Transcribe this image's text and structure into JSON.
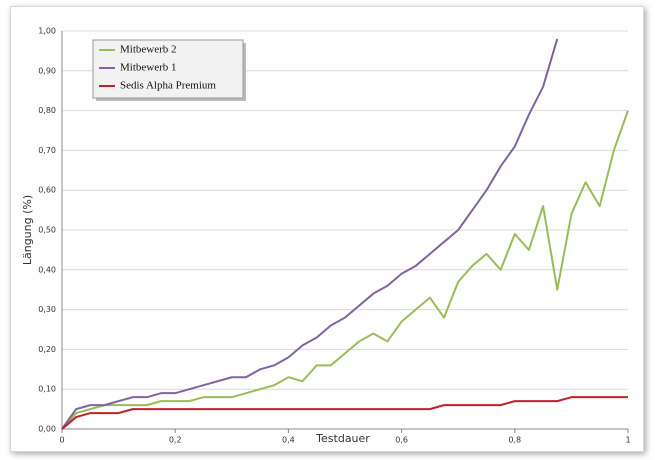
{
  "chart_data": {
    "type": "line",
    "xlabel": "Testdauer",
    "ylabel": "Längung (%)",
    "x": [
      0,
      0.025,
      0.05,
      0.075,
      0.1,
      0.125,
      0.15,
      0.175,
      0.2,
      0.225,
      0.25,
      0.275,
      0.3,
      0.325,
      0.35,
      0.375,
      0.4,
      0.425,
      0.45,
      0.475,
      0.5,
      0.525,
      0.55,
      0.575,
      0.6,
      0.625,
      0.65,
      0.675,
      0.7,
      0.725,
      0.75,
      0.775,
      0.8,
      0.825,
      0.85,
      0.875,
      0.9,
      0.925,
      0.95,
      0.975,
      1
    ],
    "series": [
      {
        "name": "Mitbewerb 2",
        "color": "#9bbb59",
        "values": [
          0,
          0.04,
          0.05,
          0.06,
          0.06,
          0.06,
          0.06,
          0.07,
          0.07,
          0.07,
          0.08,
          0.08,
          0.08,
          0.09,
          0.1,
          0.11,
          0.13,
          0.12,
          0.16,
          0.16,
          0.19,
          0.22,
          0.24,
          0.22,
          0.27,
          0.3,
          0.33,
          0.28,
          0.37,
          0.41,
          0.44,
          0.4,
          0.49,
          0.45,
          0.56,
          0.35,
          0.54,
          0.62,
          0.56,
          0.7,
          0.8
        ]
      },
      {
        "name": "Mitbewerb 1",
        "color": "#8064a2",
        "values": [
          0,
          0.05,
          0.06,
          0.06,
          0.07,
          0.08,
          0.08,
          0.09,
          0.09,
          0.1,
          0.11,
          0.12,
          0.13,
          0.13,
          0.15,
          0.16,
          0.18,
          0.21,
          0.23,
          0.26,
          0.28,
          0.31,
          0.34,
          0.36,
          0.39,
          0.41,
          0.44,
          0.47,
          0.5,
          0.55,
          0.6,
          0.66,
          0.71,
          0.79,
          0.86,
          0.98,
          null,
          null,
          null,
          null,
          null
        ]
      },
      {
        "name": "Sedis Alpha Premium",
        "color": "#c0202a",
        "values": [
          0,
          0.03,
          0.04,
          0.04,
          0.04,
          0.05,
          0.05,
          0.05,
          0.05,
          0.05,
          0.05,
          0.05,
          0.05,
          0.05,
          0.05,
          0.05,
          0.05,
          0.05,
          0.05,
          0.05,
          0.05,
          0.05,
          0.05,
          0.05,
          0.05,
          0.05,
          0.05,
          0.06,
          0.06,
          0.06,
          0.06,
          0.06,
          0.07,
          0.07,
          0.07,
          0.07,
          0.08,
          0.08,
          0.08,
          0.08,
          0.08
        ]
      }
    ],
    "xlim": [
      0,
      1
    ],
    "ylim": [
      0,
      1
    ],
    "xticks": [
      0,
      {
        "value": 0.2,
        "label": "0,2"
      },
      {
        "value": 0.4,
        "label": "0,4"
      },
      {
        "value": 0.6,
        "label": "0,6"
      },
      {
        "value": 0.8,
        "label": "0,8"
      },
      1
    ],
    "yticks": [
      {
        "value": 0,
        "label": "0,00"
      },
      {
        "value": 0.1,
        "label": "0,10"
      },
      {
        "value": 0.2,
        "label": "0,20"
      },
      {
        "value": 0.3,
        "label": "0,30"
      },
      {
        "value": 0.4,
        "label": "0,40"
      },
      {
        "value": 0.5,
        "label": "0,50"
      },
      {
        "value": 0.6,
        "label": "0,60"
      },
      {
        "value": 0.7,
        "label": "0,70"
      },
      {
        "value": 0.8,
        "label": "0,80"
      },
      {
        "value": 0.9,
        "label": "0,90"
      },
      {
        "value": 1,
        "label": "1,00"
      }
    ],
    "grid": true,
    "legend": "upper-left"
  }
}
